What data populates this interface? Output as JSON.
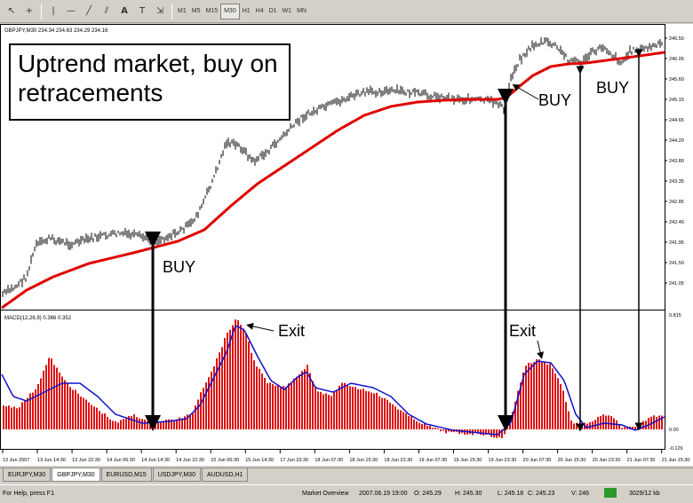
{
  "toolbar": {
    "tools": [
      "arrow-cursor-icon",
      "crosshair-icon",
      "vertical-line-icon",
      "horizontal-line-icon",
      "trendline-icon",
      "channel-icon",
      "text-icon",
      "label-icon",
      "arrows-icon"
    ],
    "timeframes": [
      "M1",
      "M5",
      "M15",
      "M30",
      "H1",
      "H4",
      "D1",
      "W1",
      "MN"
    ],
    "active_timeframe": "M30"
  },
  "chart": {
    "symbol_header": "GBPJPY,M30  234.34 234.63 234.29 234.16",
    "annotation": "Uptrend market, buy on retracements",
    "price_ticks": [
      "246.50",
      "246.05",
      "245.60",
      "245.15",
      "244.65",
      "244.20",
      "243.80",
      "243.35",
      "242.85",
      "242.40",
      "241.95",
      "241.50",
      "241.05"
    ],
    "macd_header": "MACD(12,26,9) 0.366 0.352",
    "macd_ticks": [
      "0.815",
      "0.00",
      "-0.129"
    ],
    "time_labels": [
      "13 Jun 2007",
      "13 Jun 14:30",
      "13 Jun 22:30",
      "14 Jun 06:30",
      "14 Jun 14:30",
      "14 Jun 22:30",
      "15 Jun 06:30",
      "15 Jun 14:30",
      "17 Jun 23:30",
      "18 Jun 07:30",
      "18 Jun 15:30",
      "18 Jun 23:30",
      "19 Jun 07:30",
      "19 Jun 15:30",
      "19 Jun 23:30",
      "20 Jun 07:30",
      "20 Jun 15:30",
      "20 Jun 23:30",
      "21 Jun 07:30",
      "21 Jun 15:30"
    ],
    "buy_labels": [
      "BUY",
      "BUY",
      "BUY"
    ],
    "exit_labels": [
      "Exit",
      "Exit"
    ],
    "colors": {
      "ma": "#e00000",
      "histogram": "#dd1111",
      "signal": "#1010cc",
      "candles": "#000000"
    }
  },
  "tabs": [
    "EURJPY,M30",
    "GBPJPY,M30",
    "EURUSD,M15",
    "USDJPY,M30",
    "AUDUSD,H1"
  ],
  "active_tab": 1,
  "status": {
    "help": "For Help, press F1",
    "profile": "Market Overview",
    "datetime": "2007.06.19 19:00",
    "open": "O: 245.29",
    "high": "H: 245.30",
    "low": "L: 245.18",
    "close": "C: 245.23",
    "volume": "V: 246",
    "traffic": "3029/12 kb"
  }
}
